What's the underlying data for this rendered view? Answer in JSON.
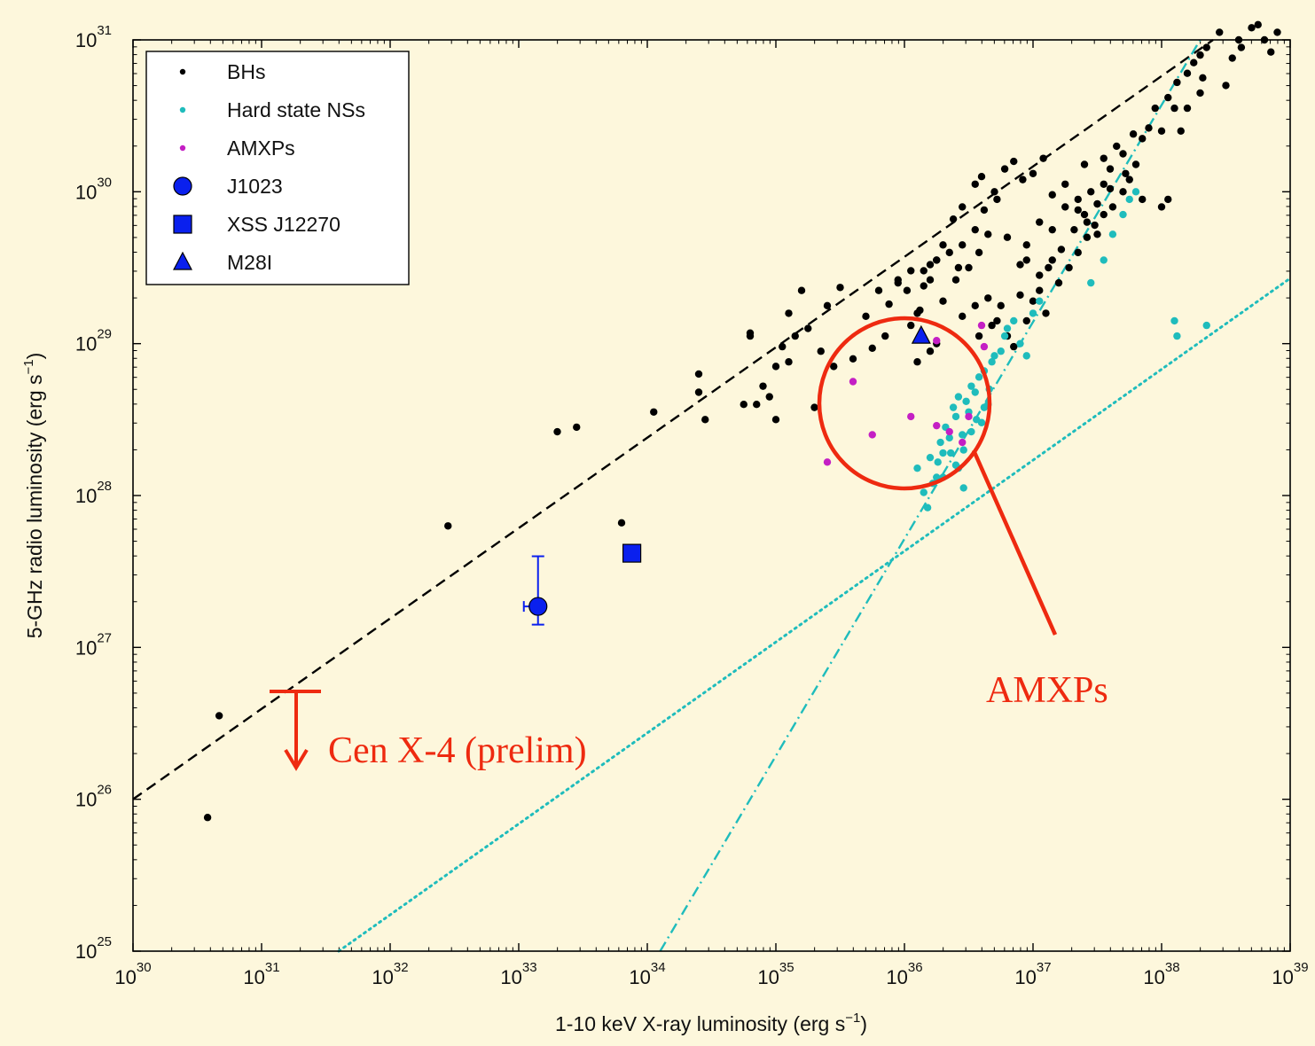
{
  "chart_data": {
    "type": "scatter",
    "xscale": "log",
    "yscale": "log",
    "xlim": [
      1e+30,
      1e+39
    ],
    "ylim": [
      1e+25,
      1e+31
    ],
    "xlabel": "1-10 keV X-ray luminosity (erg s",
    "xlabel_sup": "−1",
    "xlabel_close": ")",
    "ylabel": "5-GHz radio luminosity (erg s",
    "ylabel_sup": "−1",
    "ylabel_close": ")",
    "grid": false,
    "legend_position": "top-left",
    "x_ticks": [
      {
        "base": "10",
        "exp": "30",
        "value": 30
      },
      {
        "base": "10",
        "exp": "31",
        "value": 31
      },
      {
        "base": "10",
        "exp": "32",
        "value": 32
      },
      {
        "base": "10",
        "exp": "33",
        "value": 33
      },
      {
        "base": "10",
        "exp": "34",
        "value": 34
      },
      {
        "base": "10",
        "exp": "35",
        "value": 35
      },
      {
        "base": "10",
        "exp": "36",
        "value": 36
      },
      {
        "base": "10",
        "exp": "37",
        "value": 37
      },
      {
        "base": "10",
        "exp": "38",
        "value": 38
      },
      {
        "base": "10",
        "exp": "39",
        "value": 39
      }
    ],
    "y_ticks": [
      {
        "base": "10",
        "exp": "25",
        "value": 25
      },
      {
        "base": "10",
        "exp": "26",
        "value": 26
      },
      {
        "base": "10",
        "exp": "27",
        "value": 27
      },
      {
        "base": "10",
        "exp": "28",
        "value": 28
      },
      {
        "base": "10",
        "exp": "29",
        "value": 29
      },
      {
        "base": "10",
        "exp": "30",
        "value": 30
      },
      {
        "base": "10",
        "exp": "31",
        "value": 31
      }
    ],
    "series": [
      {
        "name": "BHs",
        "marker": "dot",
        "color": "#000000",
        "points_log": [
          [
            30.58,
            25.88
          ],
          [
            30.67,
            26.55
          ],
          [
            32.45,
            27.8
          ],
          [
            33.3,
            28.42
          ],
          [
            33.45,
            28.45
          ],
          [
            33.8,
            27.82
          ],
          [
            34.05,
            28.55
          ],
          [
            34.4,
            28.8
          ],
          [
            34.4,
            28.68
          ],
          [
            34.45,
            28.5
          ],
          [
            34.75,
            28.6
          ],
          [
            34.8,
            29.05
          ],
          [
            34.8,
            29.07
          ],
          [
            34.85,
            28.6
          ],
          [
            34.9,
            28.72
          ],
          [
            34.95,
            28.65
          ],
          [
            35.0,
            28.5
          ],
          [
            35.0,
            28.85
          ],
          [
            35.05,
            28.98
          ],
          [
            35.1,
            29.2
          ],
          [
            35.1,
            28.88
          ],
          [
            35.15,
            29.05
          ],
          [
            35.2,
            29.35
          ],
          [
            35.25,
            29.1
          ],
          [
            35.3,
            28.58
          ],
          [
            35.35,
            28.95
          ],
          [
            35.4,
            29.25
          ],
          [
            35.45,
            28.85
          ],
          [
            35.5,
            29.37
          ],
          [
            35.6,
            28.9
          ],
          [
            35.7,
            29.18
          ],
          [
            35.75,
            28.97
          ],
          [
            35.8,
            29.35
          ],
          [
            35.85,
            29.05
          ],
          [
            35.88,
            29.26
          ],
          [
            35.95,
            29.4
          ],
          [
            36.05,
            29.12
          ],
          [
            36.1,
            29.2
          ],
          [
            36.15,
            29.48
          ],
          [
            36.2,
            29.52
          ],
          [
            36.25,
            29.55
          ],
          [
            36.35,
            29.6
          ],
          [
            36.42,
            29.5
          ],
          [
            36.45,
            29.65
          ],
          [
            36.55,
            29.75
          ],
          [
            36.62,
            29.88
          ],
          [
            36.72,
            29.95
          ],
          [
            36.8,
            29.7
          ],
          [
            36.9,
            29.52
          ],
          [
            36.95,
            29.65
          ],
          [
            37.05,
            29.8
          ],
          [
            37.15,
            29.75
          ],
          [
            37.25,
            29.9
          ],
          [
            37.35,
            29.95
          ],
          [
            37.45,
            30.0
          ],
          [
            37.5,
            29.92
          ],
          [
            37.55,
            30.05
          ],
          [
            37.6,
            30.15
          ],
          [
            37.7,
            30.25
          ],
          [
            37.75,
            30.08
          ],
          [
            37.8,
            30.18
          ],
          [
            37.85,
            30.35
          ],
          [
            37.9,
            30.42
          ],
          [
            37.95,
            30.55
          ],
          [
            38.05,
            30.62
          ],
          [
            38.12,
            30.72
          ],
          [
            38.2,
            30.78
          ],
          [
            38.25,
            30.85
          ],
          [
            38.3,
            30.9
          ],
          [
            38.32,
            30.75
          ],
          [
            38.35,
            30.95
          ],
          [
            38.45,
            31.05
          ],
          [
            38.5,
            30.7
          ],
          [
            38.55,
            30.88
          ],
          [
            38.6,
            31.0
          ],
          [
            38.62,
            30.95
          ],
          [
            38.7,
            31.08
          ],
          [
            38.75,
            31.1
          ],
          [
            38.8,
            31.0
          ],
          [
            38.85,
            30.92
          ],
          [
            38.9,
            31.05
          ],
          [
            36.02,
            29.35
          ],
          [
            36.12,
            29.22
          ],
          [
            36.2,
            29.42
          ],
          [
            36.3,
            29.65
          ],
          [
            36.38,
            29.82
          ],
          [
            36.45,
            29.9
          ],
          [
            36.55,
            30.05
          ],
          [
            36.6,
            30.1
          ],
          [
            36.7,
            30.0
          ],
          [
            36.78,
            30.15
          ],
          [
            36.85,
            30.2
          ],
          [
            36.92,
            30.08
          ],
          [
            37.0,
            30.12
          ],
          [
            37.08,
            30.22
          ],
          [
            37.15,
            29.98
          ],
          [
            37.25,
            30.05
          ],
          [
            37.35,
            29.88
          ],
          [
            37.42,
            29.8
          ],
          [
            37.5,
            29.72
          ],
          [
            37.4,
            30.18
          ],
          [
            37.55,
            30.22
          ],
          [
            37.65,
            30.3
          ],
          [
            37.72,
            30.12
          ],
          [
            37.78,
            30.38
          ],
          [
            38.0,
            30.4
          ],
          [
            38.1,
            30.55
          ],
          [
            36.45,
            29.18
          ],
          [
            36.55,
            29.25
          ],
          [
            36.65,
            29.3
          ],
          [
            36.72,
            29.15
          ],
          [
            36.8,
            29.05
          ],
          [
            36.9,
            29.32
          ],
          [
            37.0,
            29.28
          ],
          [
            37.1,
            29.2
          ],
          [
            37.2,
            29.4
          ],
          [
            37.28,
            29.5
          ],
          [
            37.35,
            29.6
          ],
          [
            37.42,
            29.7
          ],
          [
            37.48,
            29.78
          ],
          [
            37.55,
            29.85
          ],
          [
            37.62,
            29.9
          ],
          [
            37.7,
            30.0
          ],
          [
            36.58,
            29.05
          ],
          [
            36.68,
            29.12
          ],
          [
            36.75,
            29.25
          ],
          [
            36.85,
            28.98
          ],
          [
            36.95,
            29.15
          ],
          [
            37.05,
            29.35
          ],
          [
            37.12,
            29.5
          ],
          [
            37.22,
            29.62
          ],
          [
            37.32,
            29.75
          ],
          [
            37.4,
            29.85
          ],
          [
            37.5,
            29.92
          ],
          [
            37.6,
            30.02
          ],
          [
            37.85,
            29.95
          ],
          [
            38.0,
            29.9
          ],
          [
            38.05,
            29.95
          ],
          [
            38.15,
            30.4
          ],
          [
            38.2,
            30.55
          ],
          [
            38.3,
            30.65
          ],
          [
            36.95,
            29.55
          ],
          [
            37.05,
            29.45
          ],
          [
            37.15,
            29.55
          ],
          [
            35.95,
            29.42
          ],
          [
            36.05,
            29.48
          ],
          [
            36.15,
            29.38
          ],
          [
            36.25,
            29.55
          ],
          [
            36.3,
            29.28
          ],
          [
            36.4,
            29.42
          ],
          [
            36.5,
            29.5
          ],
          [
            36.58,
            29.6
          ],
          [
            36.65,
            29.72
          ],
          [
            36.1,
            28.88
          ],
          [
            36.2,
            28.95
          ],
          [
            36.25,
            29.0
          ]
        ]
      },
      {
        "name": "Hard state NSs",
        "marker": "dot",
        "color": "#1fbcbc",
        "points_log": [
          [
            36.15,
            28.02
          ],
          [
            36.2,
            28.25
          ],
          [
            36.25,
            28.12
          ],
          [
            36.28,
            28.35
          ],
          [
            36.3,
            28.28
          ],
          [
            36.32,
            28.45
          ],
          [
            36.35,
            28.38
          ],
          [
            36.38,
            28.58
          ],
          [
            36.4,
            28.52
          ],
          [
            36.42,
            28.65
          ],
          [
            36.45,
            28.4
          ],
          [
            36.48,
            28.62
          ],
          [
            36.5,
            28.55
          ],
          [
            36.52,
            28.72
          ],
          [
            36.55,
            28.68
          ],
          [
            36.58,
            28.78
          ],
          [
            36.6,
            28.48
          ],
          [
            36.62,
            28.82
          ],
          [
            36.65,
            28.6
          ],
          [
            36.68,
            28.88
          ],
          [
            36.7,
            28.92
          ],
          [
            36.75,
            28.95
          ],
          [
            36.78,
            29.05
          ],
          [
            36.8,
            29.1
          ],
          [
            36.85,
            29.15
          ],
          [
            36.9,
            29.0
          ],
          [
            36.95,
            28.92
          ],
          [
            37.0,
            29.2
          ],
          [
            37.05,
            29.28
          ],
          [
            36.1,
            28.18
          ],
          [
            36.18,
            27.92
          ],
          [
            36.22,
            28.08
          ],
          [
            36.26,
            28.22
          ],
          [
            36.3,
            28.12
          ],
          [
            36.36,
            28.28
          ],
          [
            36.42,
            28.18
          ],
          [
            36.46,
            28.3
          ],
          [
            36.52,
            28.42
          ],
          [
            36.56,
            28.5
          ],
          [
            36.62,
            28.58
          ],
          [
            36.66,
            28.7
          ],
          [
            38.1,
            29.15
          ],
          [
            38.12,
            29.05
          ],
          [
            38.35,
            29.12
          ],
          [
            37.45,
            29.4
          ],
          [
            37.55,
            29.55
          ],
          [
            37.62,
            29.72
          ],
          [
            37.7,
            29.85
          ],
          [
            37.75,
            29.95
          ],
          [
            37.8,
            30.0
          ],
          [
            36.4,
            28.2
          ],
          [
            36.46,
            28.05
          ]
        ]
      },
      {
        "name": "AMXPs",
        "marker": "dot",
        "color": "#c41fc4",
        "points_log": [
          [
            35.6,
            28.75
          ],
          [
            35.4,
            28.22
          ],
          [
            35.75,
            28.4
          ],
          [
            36.05,
            28.52
          ],
          [
            36.25,
            28.46
          ],
          [
            36.35,
            28.42
          ],
          [
            36.45,
            28.35
          ],
          [
            36.5,
            28.52
          ],
          [
            36.6,
            29.12
          ],
          [
            36.62,
            28.98
          ],
          [
            36.25,
            29.02
          ]
        ]
      },
      {
        "name": "J1023",
        "marker": "circle",
        "color": "#0a20ee",
        "points_log": [
          [
            33.15,
            27.27
          ]
        ],
        "y_err_log": [
          27.15,
          27.6
        ],
        "x_upper_limit": true
      },
      {
        "name": "XSS J12270",
        "marker": "square",
        "color": "#0a20ee",
        "points_log": [
          [
            33.88,
            27.62
          ]
        ]
      },
      {
        "name": "M28I",
        "marker": "triangle",
        "color": "#0a20ee",
        "points_log": [
          [
            36.13,
            29.05
          ]
        ]
      }
    ],
    "lines": [
      {
        "style": "dashed",
        "color": "#000000",
        "from_log": [
          30.0,
          26.0
        ],
        "to_log": [
          38.4,
          31.0
        ]
      },
      {
        "style": "dotted",
        "color": "#1fbcbc",
        "from_log": [
          31.6,
          25.0
        ],
        "to_log": [
          39.0,
          29.43
        ]
      },
      {
        "style": "dashdot",
        "color": "#1fbcbc",
        "from_log": [
          34.1,
          25.0
        ],
        "to_log": [
          38.3,
          31.0
        ]
      }
    ],
    "annotations": [
      {
        "text": "Cen X-4 (prelim)",
        "color": "#ee2a10"
      },
      {
        "text": "AMXPs",
        "color": "#ee2a10"
      }
    ]
  }
}
